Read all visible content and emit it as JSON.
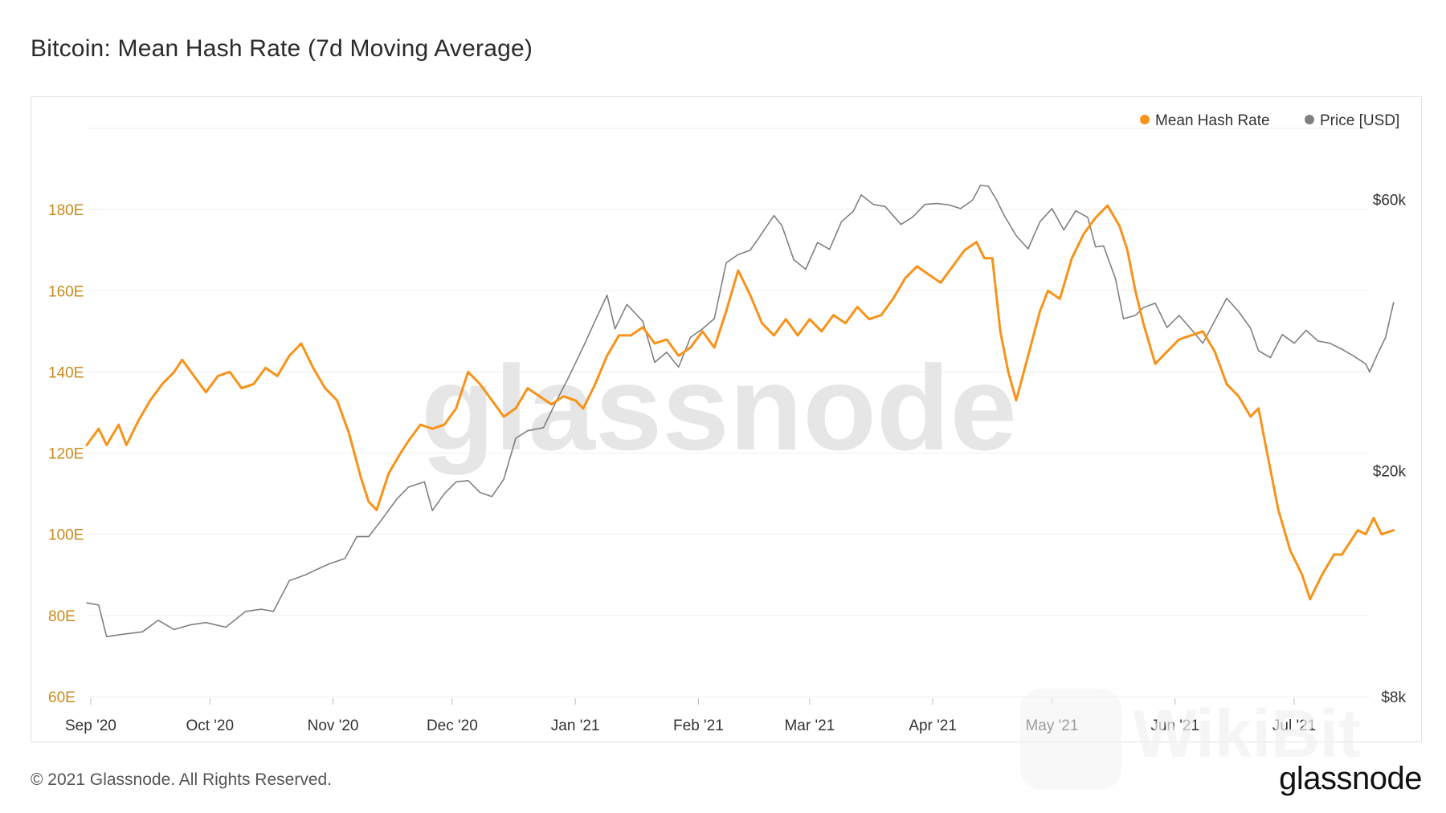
{
  "title": "Bitcoin: Mean Hash Rate (7d Moving Average)",
  "footer": "© 2021 Glassnode. All Rights Reserved.",
  "brand": "glassnode",
  "watermark_text": "glassnode",
  "corner_watermark": "WikiBit",
  "colors": {
    "hash_rate": "#f7931a",
    "price": "#808080",
    "grid": "#efefef",
    "left_axis_text": "#c98a1e",
    "right_axis_text": "#333333"
  },
  "chart_data": {
    "type": "line",
    "legend_position": "top-right",
    "legend": [
      {
        "label": "Mean Hash Rate",
        "color": "#f7931a"
      },
      {
        "label": "Price [USD]",
        "color": "#808080"
      }
    ],
    "x_range": [
      "2020-08-31",
      "2021-07-20"
    ],
    "x_ticks": [
      {
        "label": "Sep '20",
        "date": "2020-09-01"
      },
      {
        "label": "Oct '20",
        "date": "2020-10-01"
      },
      {
        "label": "Nov '20",
        "date": "2020-11-01"
      },
      {
        "label": "Dec '20",
        "date": "2020-12-01"
      },
      {
        "label": "Jan '21",
        "date": "2021-01-01"
      },
      {
        "label": "Feb '21",
        "date": "2021-02-01"
      },
      {
        "label": "Mar '21",
        "date": "2021-03-01"
      },
      {
        "label": "Apr '21",
        "date": "2021-04-01"
      },
      {
        "label": "May '21",
        "date": "2021-05-01"
      },
      {
        "label": "Jun '21",
        "date": "2021-06-01"
      },
      {
        "label": "Jul '21",
        "date": "2021-07-01"
      }
    ],
    "y_left": {
      "ylim": [
        60,
        200
      ],
      "ticks": [
        60,
        80,
        100,
        120,
        140,
        160,
        180
      ],
      "tick_labels": [
        "60E",
        "80E",
        "100E",
        "120E",
        "140E",
        "160E",
        "180E"
      ]
    },
    "y_right": {
      "scale": "log",
      "ylim": [
        8000,
        80000
      ],
      "ticks": [
        8000,
        20000,
        60000
      ],
      "tick_labels": [
        "$8k",
        "$20k",
        "$60k"
      ]
    },
    "grid": true,
    "series": [
      {
        "name": "Mean Hash Rate",
        "axis": "left",
        "unit": "EH/s",
        "points": [
          [
            "2020-08-31",
            122
          ],
          [
            "2020-09-03",
            126
          ],
          [
            "2020-09-05",
            122
          ],
          [
            "2020-09-08",
            127
          ],
          [
            "2020-09-10",
            122
          ],
          [
            "2020-09-13",
            128
          ],
          [
            "2020-09-16",
            133
          ],
          [
            "2020-09-19",
            137
          ],
          [
            "2020-09-22",
            140
          ],
          [
            "2020-09-24",
            143
          ],
          [
            "2020-09-27",
            139
          ],
          [
            "2020-09-30",
            135
          ],
          [
            "2020-10-03",
            139
          ],
          [
            "2020-10-06",
            140
          ],
          [
            "2020-10-09",
            136
          ],
          [
            "2020-10-12",
            137
          ],
          [
            "2020-10-15",
            141
          ],
          [
            "2020-10-18",
            139
          ],
          [
            "2020-10-21",
            144
          ],
          [
            "2020-10-24",
            147
          ],
          [
            "2020-10-27",
            141
          ],
          [
            "2020-10-30",
            136
          ],
          [
            "2020-11-02",
            133
          ],
          [
            "2020-11-05",
            125
          ],
          [
            "2020-11-08",
            114
          ],
          [
            "2020-11-10",
            108
          ],
          [
            "2020-11-12",
            106
          ],
          [
            "2020-11-15",
            115
          ],
          [
            "2020-11-18",
            120
          ],
          [
            "2020-11-20",
            123
          ],
          [
            "2020-11-23",
            127
          ],
          [
            "2020-11-26",
            126
          ],
          [
            "2020-11-29",
            127
          ],
          [
            "2020-12-02",
            131
          ],
          [
            "2020-12-05",
            140
          ],
          [
            "2020-12-08",
            137
          ],
          [
            "2020-12-11",
            133
          ],
          [
            "2020-12-14",
            129
          ],
          [
            "2020-12-17",
            131
          ],
          [
            "2020-12-20",
            136
          ],
          [
            "2020-12-23",
            134
          ],
          [
            "2020-12-26",
            132
          ],
          [
            "2020-12-29",
            134
          ],
          [
            "2021-01-01",
            133
          ],
          [
            "2021-01-03",
            131
          ],
          [
            "2021-01-06",
            137
          ],
          [
            "2021-01-09",
            144
          ],
          [
            "2021-01-12",
            149
          ],
          [
            "2021-01-15",
            149
          ],
          [
            "2021-01-18",
            151
          ],
          [
            "2021-01-21",
            147
          ],
          [
            "2021-01-24",
            148
          ],
          [
            "2021-01-27",
            144
          ],
          [
            "2021-01-30",
            146
          ],
          [
            "2021-02-02",
            150
          ],
          [
            "2021-02-05",
            146
          ],
          [
            "2021-02-08",
            155
          ],
          [
            "2021-02-11",
            165
          ],
          [
            "2021-02-14",
            159
          ],
          [
            "2021-02-17",
            152
          ],
          [
            "2021-02-20",
            149
          ],
          [
            "2021-02-23",
            153
          ],
          [
            "2021-02-26",
            149
          ],
          [
            "2021-03-01",
            153
          ],
          [
            "2021-03-04",
            150
          ],
          [
            "2021-03-07",
            154
          ],
          [
            "2021-03-10",
            152
          ],
          [
            "2021-03-13",
            156
          ],
          [
            "2021-03-16",
            153
          ],
          [
            "2021-03-19",
            154
          ],
          [
            "2021-03-22",
            158
          ],
          [
            "2021-03-25",
            163
          ],
          [
            "2021-03-28",
            166
          ],
          [
            "2021-03-31",
            164
          ],
          [
            "2021-04-03",
            162
          ],
          [
            "2021-04-06",
            166
          ],
          [
            "2021-04-09",
            170
          ],
          [
            "2021-04-12",
            172
          ],
          [
            "2021-04-14",
            168
          ],
          [
            "2021-04-16",
            168
          ],
          [
            "2021-04-18",
            150
          ],
          [
            "2021-04-20",
            140
          ],
          [
            "2021-04-22",
            133
          ],
          [
            "2021-04-25",
            144
          ],
          [
            "2021-04-28",
            155
          ],
          [
            "2021-04-30",
            160
          ],
          [
            "2021-05-03",
            158
          ],
          [
            "2021-05-06",
            168
          ],
          [
            "2021-05-09",
            174
          ],
          [
            "2021-05-12",
            178
          ],
          [
            "2021-05-15",
            181
          ],
          [
            "2021-05-18",
            176
          ],
          [
            "2021-05-20",
            170
          ],
          [
            "2021-05-22",
            160
          ],
          [
            "2021-05-24",
            152
          ],
          [
            "2021-05-27",
            142
          ],
          [
            "2021-05-30",
            145
          ],
          [
            "2021-06-02",
            148
          ],
          [
            "2021-06-05",
            149
          ],
          [
            "2021-06-08",
            150
          ],
          [
            "2021-06-11",
            145
          ],
          [
            "2021-06-14",
            137
          ],
          [
            "2021-06-17",
            134
          ],
          [
            "2021-06-20",
            129
          ],
          [
            "2021-06-22",
            131
          ],
          [
            "2021-06-24",
            121
          ],
          [
            "2021-06-27",
            106
          ],
          [
            "2021-06-30",
            96
          ],
          [
            "2021-07-03",
            90
          ],
          [
            "2021-07-05",
            84
          ],
          [
            "2021-07-08",
            90
          ],
          [
            "2021-07-11",
            95
          ],
          [
            "2021-07-13",
            95
          ],
          [
            "2021-07-15",
            98
          ],
          [
            "2021-07-17",
            101
          ],
          [
            "2021-07-19",
            100
          ],
          [
            "2021-07-21",
            104
          ],
          [
            "2021-07-23",
            100
          ],
          [
            "2021-07-26",
            101
          ]
        ]
      },
      {
        "name": "Price [USD]",
        "axis": "right",
        "unit": "USD",
        "points": [
          [
            "2020-08-31",
            11700
          ],
          [
            "2020-09-03",
            11600
          ],
          [
            "2020-09-05",
            10200
          ],
          [
            "2020-09-09",
            10300
          ],
          [
            "2020-09-14",
            10400
          ],
          [
            "2020-09-18",
            10900
          ],
          [
            "2020-09-22",
            10500
          ],
          [
            "2020-09-26",
            10700
          ],
          [
            "2020-09-30",
            10800
          ],
          [
            "2020-10-05",
            10600
          ],
          [
            "2020-10-10",
            11300
          ],
          [
            "2020-10-14",
            11400
          ],
          [
            "2020-10-17",
            11300
          ],
          [
            "2020-10-21",
            12800
          ],
          [
            "2020-10-25",
            13100
          ],
          [
            "2020-10-28",
            13400
          ],
          [
            "2020-10-31",
            13700
          ],
          [
            "2020-11-04",
            14000
          ],
          [
            "2020-11-07",
            15300
          ],
          [
            "2020-11-10",
            15300
          ],
          [
            "2020-11-13",
            16300
          ],
          [
            "2020-11-17",
            17800
          ],
          [
            "2020-11-20",
            18700
          ],
          [
            "2020-11-24",
            19100
          ],
          [
            "2020-11-26",
            17000
          ],
          [
            "2020-11-29",
            18200
          ],
          [
            "2020-12-02",
            19100
          ],
          [
            "2020-12-05",
            19200
          ],
          [
            "2020-12-08",
            18300
          ],
          [
            "2020-12-11",
            18000
          ],
          [
            "2020-12-14",
            19300
          ],
          [
            "2020-12-17",
            22800
          ],
          [
            "2020-12-20",
            23500
          ],
          [
            "2020-12-24",
            23800
          ],
          [
            "2020-12-27",
            26300
          ],
          [
            "2020-12-30",
            28900
          ],
          [
            "2021-01-03",
            33000
          ],
          [
            "2021-01-06",
            36700
          ],
          [
            "2021-01-09",
            40700
          ],
          [
            "2021-01-11",
            35500
          ],
          [
            "2021-01-14",
            39200
          ],
          [
            "2021-01-18",
            36600
          ],
          [
            "2021-01-21",
            31000
          ],
          [
            "2021-01-24",
            32300
          ],
          [
            "2021-01-27",
            30400
          ],
          [
            "2021-01-30",
            34300
          ],
          [
            "2021-02-02",
            35500
          ],
          [
            "2021-02-05",
            37000
          ],
          [
            "2021-02-08",
            46400
          ],
          [
            "2021-02-11",
            48000
          ],
          [
            "2021-02-14",
            48800
          ],
          [
            "2021-02-17",
            52300
          ],
          [
            "2021-02-20",
            56200
          ],
          [
            "2021-02-22",
            54000
          ],
          [
            "2021-02-25",
            47000
          ],
          [
            "2021-02-28",
            45200
          ],
          [
            "2021-03-03",
            50400
          ],
          [
            "2021-03-06",
            49000
          ],
          [
            "2021-03-09",
            54800
          ],
          [
            "2021-03-12",
            57200
          ],
          [
            "2021-03-14",
            61100
          ],
          [
            "2021-03-17",
            58800
          ],
          [
            "2021-03-20",
            58300
          ],
          [
            "2021-03-24",
            54200
          ],
          [
            "2021-03-27",
            55900
          ],
          [
            "2021-03-30",
            58800
          ],
          [
            "2021-04-02",
            59000
          ],
          [
            "2021-04-05",
            58700
          ],
          [
            "2021-04-08",
            57800
          ],
          [
            "2021-04-11",
            59800
          ],
          [
            "2021-04-13",
            63500
          ],
          [
            "2021-04-15",
            63300
          ],
          [
            "2021-04-17",
            60000
          ],
          [
            "2021-04-19",
            56200
          ],
          [
            "2021-04-22",
            51800
          ],
          [
            "2021-04-25",
            49100
          ],
          [
            "2021-04-28",
            54800
          ],
          [
            "2021-05-01",
            57800
          ],
          [
            "2021-05-04",
            53000
          ],
          [
            "2021-05-07",
            57300
          ],
          [
            "2021-05-10",
            55800
          ],
          [
            "2021-05-12",
            49500
          ],
          [
            "2021-05-14",
            49700
          ],
          [
            "2021-05-17",
            43500
          ],
          [
            "2021-05-19",
            37000
          ],
          [
            "2021-05-22",
            37500
          ],
          [
            "2021-05-24",
            38700
          ],
          [
            "2021-05-27",
            39400
          ],
          [
            "2021-05-30",
            35700
          ],
          [
            "2021-06-02",
            37500
          ],
          [
            "2021-06-05",
            35500
          ],
          [
            "2021-06-08",
            33500
          ],
          [
            "2021-06-11",
            36700
          ],
          [
            "2021-06-14",
            40200
          ],
          [
            "2021-06-17",
            38100
          ],
          [
            "2021-06-20",
            35600
          ],
          [
            "2021-06-22",
            32500
          ],
          [
            "2021-06-25",
            31600
          ],
          [
            "2021-06-28",
            34700
          ],
          [
            "2021-07-01",
            33500
          ],
          [
            "2021-07-04",
            35300
          ],
          [
            "2021-07-07",
            33800
          ],
          [
            "2021-07-10",
            33500
          ],
          [
            "2021-07-13",
            32700
          ],
          [
            "2021-07-16",
            31800
          ],
          [
            "2021-07-19",
            30800
          ],
          [
            "2021-07-20",
            29800
          ],
          [
            "2021-07-22",
            32100
          ],
          [
            "2021-07-24",
            34300
          ],
          [
            "2021-07-26",
            39500
          ]
        ]
      }
    ]
  }
}
